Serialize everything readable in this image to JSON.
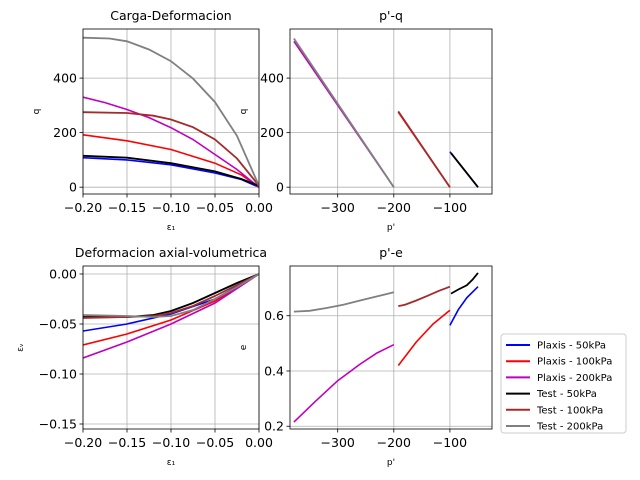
{
  "chart_data": [
    {
      "type": "line",
      "title": "Carga-Deformacion",
      "xlabel": "ε₁",
      "ylabel": "q",
      "xlim": [
        -0.2,
        0.0
      ],
      "ylim": [
        -25,
        580
      ],
      "xticks": [
        -0.2,
        -0.15,
        -0.1,
        -0.05,
        0.0
      ],
      "xtick_labels": [
        "−0.20",
        "−0.15",
        "−0.10",
        "−0.05",
        "0.00"
      ],
      "yticks": [
        0,
        200,
        400
      ],
      "ytick_labels": [
        "0",
        "200",
        "400"
      ],
      "grid": true,
      "series": [
        {
          "name": "Plaxis - 50kPa",
          "x": [
            -0.2,
            -0.15,
            -0.1,
            -0.05,
            -0.02,
            0.0
          ],
          "y": [
            108,
            100,
            82,
            52,
            28,
            0
          ]
        },
        {
          "name": "Plaxis - 100kPa",
          "x": [
            -0.2,
            -0.15,
            -0.1,
            -0.05,
            -0.02,
            0.0
          ],
          "y": [
            192,
            170,
            138,
            88,
            45,
            0
          ]
        },
        {
          "name": "Plaxis - 200kPa",
          "x": [
            -0.2,
            -0.175,
            -0.15,
            -0.125,
            -0.1,
            -0.075,
            -0.05,
            -0.025,
            0.0
          ],
          "y": [
            330,
            310,
            285,
            255,
            218,
            175,
            120,
            65,
            0
          ]
        },
        {
          "name": "Test - 50kPa",
          "x": [
            -0.2,
            -0.15,
            -0.1,
            -0.05,
            -0.02,
            0.0
          ],
          "y": [
            115,
            108,
            88,
            58,
            30,
            5
          ]
        },
        {
          "name": "Test - 100kPa",
          "x": [
            -0.2,
            -0.15,
            -0.12,
            -0.1,
            -0.075,
            -0.05,
            -0.025,
            0.0
          ],
          "y": [
            275,
            272,
            262,
            248,
            220,
            175,
            105,
            5
          ]
        },
        {
          "name": "Test - 200kPa",
          "x": [
            -0.2,
            -0.17,
            -0.15,
            -0.125,
            -0.1,
            -0.075,
            -0.05,
            -0.025,
            0.0
          ],
          "y": [
            548,
            545,
            535,
            505,
            462,
            398,
            312,
            188,
            5
          ]
        }
      ]
    },
    {
      "type": "line",
      "title": "p'-q",
      "xlabel": "p'",
      "ylabel": "q",
      "xlim": [
        -385,
        -25
      ],
      "ylim": [
        -25,
        580
      ],
      "xticks": [
        -300,
        -200,
        -100
      ],
      "xtick_labels": [
        "−300",
        "−200",
        "−100"
      ],
      "yticks": [
        0,
        200,
        400
      ],
      "ytick_labels": [
        "0",
        "200",
        "400"
      ],
      "grid": true,
      "series": [
        {
          "name": "Plaxis - 50kPa",
          "x": [
            -100,
            -50
          ],
          "y": [
            130,
            0
          ]
        },
        {
          "name": "Plaxis - 100kPa",
          "x": [
            -192,
            -100
          ],
          "y": [
            275,
            0
          ]
        },
        {
          "name": "Plaxis - 200kPa",
          "x": [
            -378,
            -200
          ],
          "y": [
            535,
            0
          ]
        },
        {
          "name": "Test - 50kPa",
          "x": [
            -98,
            -50
          ],
          "y": [
            125,
            0
          ]
        },
        {
          "name": "Test - 100kPa",
          "x": [
            -192,
            -100
          ],
          "y": [
            278,
            0
          ]
        },
        {
          "name": "Test - 200kPa",
          "x": [
            -378,
            -200
          ],
          "y": [
            545,
            0
          ]
        }
      ]
    },
    {
      "type": "line",
      "title": "Deformacion axial-volumetrica",
      "xlabel": "ε₁",
      "ylabel": "εᵥ",
      "xlim": [
        -0.2,
        0.0
      ],
      "ylim": [
        -0.155,
        0.008
      ],
      "xticks": [
        -0.2,
        -0.15,
        -0.1,
        -0.05,
        0.0
      ],
      "xtick_labels": [
        "−0.20",
        "−0.15",
        "−0.10",
        "−0.05",
        "0.00"
      ],
      "yticks": [
        -0.15,
        -0.1,
        -0.05,
        0.0
      ],
      "ytick_labels": [
        "−0.15",
        "−0.10",
        "−0.05",
        "0.00"
      ],
      "grid": true,
      "series": [
        {
          "name": "Plaxis - 50kPa",
          "x": [
            -0.2,
            -0.15,
            -0.1,
            -0.05,
            0.0
          ],
          "y": [
            -0.057,
            -0.05,
            -0.04,
            -0.025,
            0.0
          ]
        },
        {
          "name": "Plaxis - 100kPa",
          "x": [
            -0.2,
            -0.15,
            -0.1,
            -0.05,
            0.0
          ],
          "y": [
            -0.071,
            -0.06,
            -0.046,
            -0.027,
            0.0
          ]
        },
        {
          "name": "Plaxis - 200kPa",
          "x": [
            -0.2,
            -0.15,
            -0.1,
            -0.05,
            0.0
          ],
          "y": [
            -0.084,
            -0.068,
            -0.05,
            -0.029,
            0.0
          ]
        },
        {
          "name": "Test - 50kPa",
          "x": [
            -0.2,
            -0.15,
            -0.12,
            -0.1,
            -0.075,
            -0.05,
            -0.025,
            0.0
          ],
          "y": [
            -0.043,
            -0.043,
            -0.041,
            -0.037,
            -0.029,
            -0.019,
            -0.009,
            0.0
          ]
        },
        {
          "name": "Test - 100kPa",
          "x": [
            -0.2,
            -0.15,
            -0.12,
            -0.1,
            -0.075,
            -0.05,
            -0.025,
            0.0
          ],
          "y": [
            -0.044,
            -0.043,
            -0.042,
            -0.039,
            -0.032,
            -0.022,
            -0.011,
            0.0
          ]
        },
        {
          "name": "Test - 200kPa",
          "x": [
            -0.2,
            -0.15,
            -0.12,
            -0.1,
            -0.075,
            -0.05,
            -0.025,
            0.0
          ],
          "y": [
            -0.041,
            -0.042,
            -0.043,
            -0.042,
            -0.036,
            -0.025,
            -0.013,
            0.0
          ]
        }
      ]
    },
    {
      "type": "line",
      "title": "p'-e",
      "xlabel": "p'",
      "ylabel": "e",
      "xlim": [
        -385,
        -25
      ],
      "ylim": [
        0.19,
        0.78
      ],
      "xticks": [
        -300,
        -200,
        -100
      ],
      "xtick_labels": [
        "−300",
        "−200",
        "−100"
      ],
      "yticks": [
        0.2,
        0.4,
        0.6
      ],
      "ytick_labels": [
        "0.2",
        "0.4",
        "0.6"
      ],
      "grid": true,
      "legend": "right-outside",
      "series": [
        {
          "name": "Plaxis - 50kPa",
          "x": [
            -100,
            -85,
            -70,
            -50
          ],
          "y": [
            0.565,
            0.622,
            0.665,
            0.705
          ]
        },
        {
          "name": "Plaxis - 100kPa",
          "x": [
            -192,
            -160,
            -130,
            -100
          ],
          "y": [
            0.42,
            0.505,
            0.57,
            0.62
          ]
        },
        {
          "name": "Plaxis - 200kPa",
          "x": [
            -378,
            -340,
            -300,
            -260,
            -230,
            -200
          ],
          "y": [
            0.215,
            0.29,
            0.365,
            0.425,
            0.465,
            0.495
          ]
        },
        {
          "name": "Test - 50kPa",
          "x": [
            -98,
            -85,
            -70,
            -60,
            -50
          ],
          "y": [
            0.68,
            0.695,
            0.71,
            0.73,
            0.755
          ]
        },
        {
          "name": "Test - 100kPa",
          "x": [
            -192,
            -180,
            -160,
            -140,
            -120,
            -100
          ],
          "y": [
            0.635,
            0.64,
            0.655,
            0.672,
            0.69,
            0.705
          ]
        },
        {
          "name": "Test - 200kPa",
          "x": [
            -378,
            -350,
            -320,
            -290,
            -260,
            -230,
            -200
          ],
          "y": [
            0.615,
            0.618,
            0.628,
            0.64,
            0.655,
            0.67,
            0.685
          ]
        }
      ]
    }
  ],
  "legend": {
    "entries": [
      {
        "label": "Plaxis - 50kPa",
        "color": "#0000ff"
      },
      {
        "label": "Plaxis - 100kPa",
        "color": "#ff0000"
      },
      {
        "label": "Plaxis - 200kPa",
        "color": "#bf00bf"
      },
      {
        "label": "Test - 50kPa",
        "color": "#000000"
      },
      {
        "label": "Test - 100kPa",
        "color": "#a52a2a"
      },
      {
        "label": "Test - 200kPa",
        "color": "#808080"
      }
    ]
  }
}
